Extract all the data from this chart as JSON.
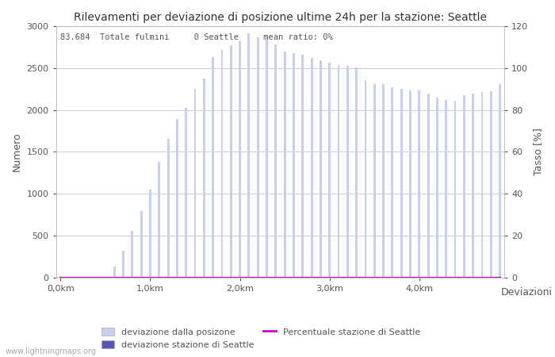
{
  "title": "Rilevamenti per deviazione di posizione ultime 24h per la stazione: Seattle",
  "xlabel": "Deviazioni",
  "ylabel_left": "Numero",
  "ylabel_right": "Tasso [%]",
  "annotation": "83.684  Totale fulmini     0 Seattle     mean ratio: 0%",
  "x_tick_labels": [
    "0,0km",
    "1,0km",
    "2,0km",
    "3,0km",
    "4,0km"
  ],
  "x_tick_positions": [
    0,
    10,
    20,
    30,
    40
  ],
  "ylim_left": [
    0,
    3000
  ],
  "ylim_right": [
    0,
    120
  ],
  "yticks_left": [
    0,
    500,
    1000,
    1500,
    2000,
    2500,
    3000
  ],
  "yticks_right": [
    0,
    20,
    40,
    60,
    80,
    100,
    120
  ],
  "bar_values": [
    5,
    10,
    10,
    10,
    10,
    10,
    130,
    320,
    560,
    790,
    1050,
    1380,
    1650,
    1890,
    2020,
    2250,
    2370,
    2630,
    2720,
    2770,
    2820,
    2910,
    2870,
    2840,
    2780,
    2700,
    2680,
    2660,
    2620,
    2590,
    2560,
    2540,
    2530,
    2510,
    2360,
    2310,
    2310,
    2270,
    2250,
    2230,
    2230,
    2190,
    2150,
    2120,
    2110,
    2180,
    2190,
    2210,
    2220,
    2310
  ],
  "seattle_values": [
    0,
    0,
    0,
    0,
    0,
    0,
    0,
    0,
    0,
    0,
    0,
    0,
    0,
    0,
    0,
    0,
    0,
    0,
    0,
    0,
    0,
    0,
    0,
    0,
    0,
    0,
    0,
    0,
    0,
    0,
    0,
    0,
    0,
    0,
    0,
    0,
    0,
    0,
    0,
    0,
    0,
    0,
    0,
    0,
    0,
    0,
    0,
    0,
    0,
    0
  ],
  "percentage_values": [
    0,
    0,
    0,
    0,
    0,
    0,
    0,
    0,
    0,
    0,
    0,
    0,
    0,
    0,
    0,
    0,
    0,
    0,
    0,
    0,
    0,
    0,
    0,
    0,
    0,
    0,
    0,
    0,
    0,
    0,
    0,
    0,
    0,
    0,
    0,
    0,
    0,
    0,
    0,
    0,
    0,
    0,
    0,
    0,
    0,
    0,
    0,
    0,
    0,
    0
  ],
  "bar_color_light": "#c8cef0",
  "bar_color_dark": "#5555bb",
  "line_color": "#cc00cc",
  "background_color": "#ffffff",
  "grid_color": "#bbbbbb",
  "text_color": "#555555",
  "legend_label_light": "deviazione dalla posizone",
  "legend_label_dark": "deviazione stazione di Seattle",
  "legend_label_line": "Percentuale stazione di Seattle",
  "watermark": "www.lightningmaps.org",
  "bar_width": 0.25,
  "n_bars": 50
}
